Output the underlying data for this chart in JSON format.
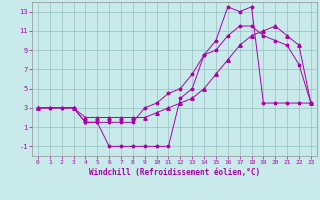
{
  "title": "",
  "xlabel": "Windchill (Refroidissement éolien,°C)",
  "ylabel": "",
  "background_color": "#c8eaea",
  "grid_color": "#a0c8c8",
  "line_color": "#aa00aa",
  "xlim": [
    -0.5,
    23.5
  ],
  "ylim": [
    -2.0,
    14.0
  ],
  "xticks": [
    0,
    1,
    2,
    3,
    4,
    5,
    6,
    7,
    8,
    9,
    10,
    11,
    12,
    13,
    14,
    15,
    16,
    17,
    18,
    19,
    20,
    21,
    22,
    23
  ],
  "yticks": [
    -1,
    1,
    3,
    5,
    7,
    9,
    11,
    13
  ],
  "line1_x": [
    0,
    1,
    2,
    3,
    4,
    5,
    6,
    7,
    8,
    9,
    10,
    11,
    12,
    13,
    14,
    15,
    16,
    17,
    18,
    19,
    20,
    21,
    22,
    23
  ],
  "line1_y": [
    3.0,
    3.0,
    3.0,
    3.0,
    1.5,
    1.5,
    -1.0,
    -1.0,
    -1.0,
    -1.0,
    -1.0,
    -1.0,
    4.0,
    5.0,
    8.5,
    10.0,
    13.5,
    13.0,
    13.5,
    3.5,
    3.5,
    3.5,
    3.5,
    3.5
  ],
  "line2_x": [
    0,
    1,
    2,
    3,
    4,
    5,
    6,
    7,
    8,
    9,
    10,
    11,
    12,
    13,
    14,
    15,
    16,
    17,
    18,
    19,
    20,
    21,
    22,
    23
  ],
  "line2_y": [
    3.0,
    3.0,
    3.0,
    3.0,
    1.5,
    1.5,
    1.5,
    1.5,
    1.5,
    3.0,
    3.5,
    4.5,
    5.0,
    6.5,
    8.5,
    9.0,
    10.5,
    11.5,
    11.5,
    10.5,
    10.0,
    9.5,
    7.5,
    3.5
  ],
  "line3_x": [
    0,
    3,
    4,
    5,
    6,
    7,
    8,
    9,
    10,
    11,
    12,
    13,
    14,
    15,
    16,
    17,
    18,
    19,
    20,
    21,
    22,
    23
  ],
  "line3_y": [
    3.0,
    3.0,
    2.0,
    2.0,
    2.0,
    2.0,
    2.0,
    2.0,
    2.5,
    3.0,
    3.5,
    4.0,
    5.0,
    6.5,
    8.0,
    9.5,
    10.5,
    11.0,
    11.5,
    10.5,
    9.5,
    3.5
  ],
  "markersize": 2.5,
  "linewidth": 0.7
}
